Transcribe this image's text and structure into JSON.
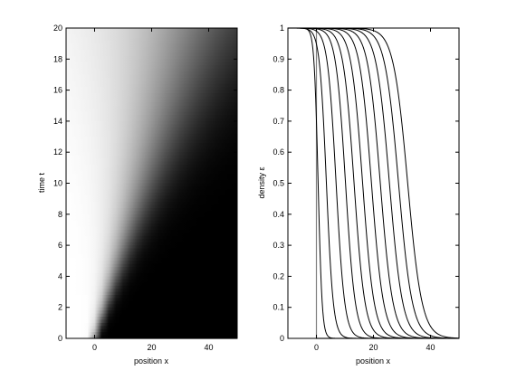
{
  "chart_data": [
    {
      "type": "heatmap",
      "colormap": "gray",
      "xlabel": "position x",
      "ylabel": "time t",
      "xlim": [
        -10,
        50
      ],
      "ylim": [
        0,
        20
      ],
      "x_ticks": [
        "0",
        "20",
        "40"
      ],
      "x_tick_values": [
        0,
        20,
        40
      ],
      "y_ticks": [
        "0",
        "2",
        "4",
        "6",
        "8",
        "10",
        "12",
        "14",
        "16",
        "18",
        "20"
      ],
      "y_tick_values": [
        0,
        2,
        4,
        6,
        8,
        10,
        12,
        14,
        16,
        18,
        20
      ],
      "front_position_at_t0": 0,
      "front_speed": 1.65,
      "description_values": {
        "left_value": 0,
        "right_value": 1
      }
    },
    {
      "type": "line",
      "xlabel": "position x",
      "ylabel": "density ε",
      "xlim": [
        -10,
        50
      ],
      "ylim": [
        0,
        1
      ],
      "x_ticks": [
        "0",
        "20",
        "40"
      ],
      "x_tick_values": [
        0,
        20,
        40
      ],
      "y_ticks": [
        "0",
        "0.1",
        "0.2",
        "0.3",
        "0.4",
        "0.5",
        "0.6",
        "0.7",
        "0.8",
        "0.9",
        "1"
      ],
      "y_tick_values": [
        0,
        0.1,
        0.2,
        0.3,
        0.4,
        0.5,
        0.6,
        0.7,
        0.8,
        0.9,
        1
      ],
      "initial_step": {
        "x": 0,
        "color": "#808080"
      },
      "curve_centers": [
        0.6,
        3.5,
        6.9,
        10.2,
        13.2,
        16.2,
        19.3,
        22.4,
        25.6,
        28.8,
        32.0
      ],
      "curve_widths": [
        0.7,
        1.2,
        1.5,
        1.7,
        1.9,
        2.0,
        2.1,
        2.2,
        2.3,
        2.4,
        2.5
      ],
      "line_color": "#000000"
    }
  ]
}
